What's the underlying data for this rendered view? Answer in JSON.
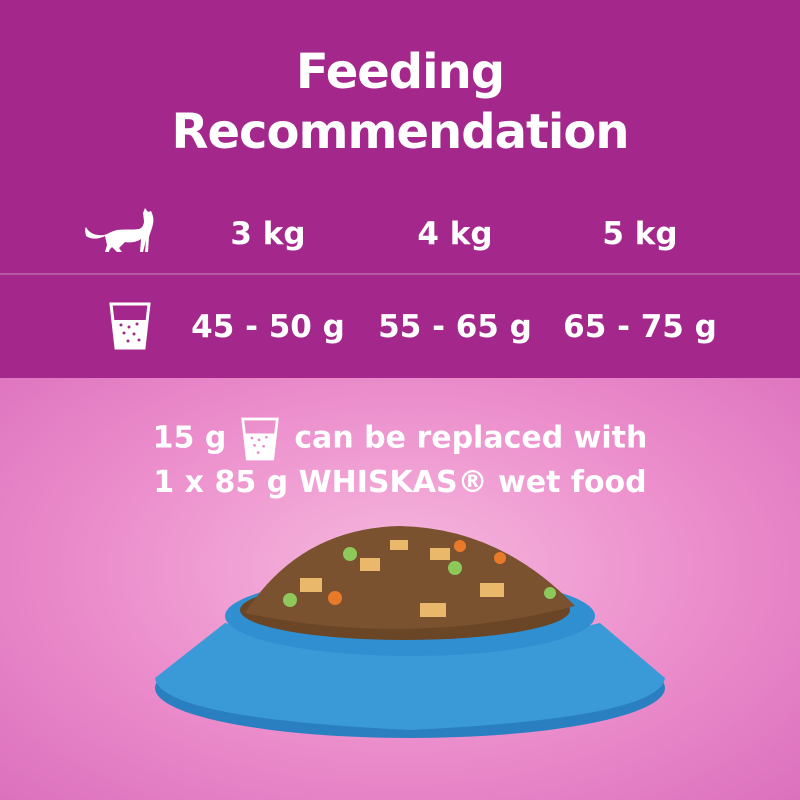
{
  "title_line1": "Feeding",
  "title_line2": "Recommendation",
  "table": {
    "weights": [
      "3 kg",
      "4 kg",
      "5 kg"
    ],
    "amounts": [
      "45 - 50 g",
      "55 - 65 g",
      "65 - 75 g"
    ],
    "weight_icon": "cat-icon",
    "amount_icon": "measuring-cup-icon"
  },
  "note": {
    "amount": "15 g",
    "text1": "can be replaced with",
    "text2": "1 x 85 g WHISKAS® wet food"
  },
  "colors": {
    "header": "#a4288c",
    "background": "#eb8ccb",
    "bowl": "#2f8fd0"
  }
}
